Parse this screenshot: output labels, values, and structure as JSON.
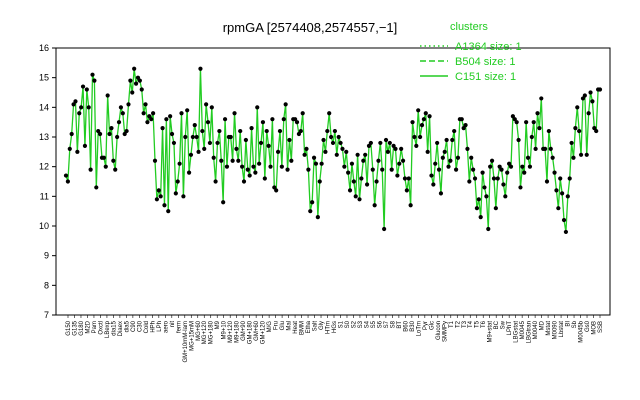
{
  "chart_data": {
    "type": "line",
    "title": "rpmGA [2574408,2574557,−1]",
    "xlabel": "",
    "ylabel": "",
    "ylim": [
      7,
      16
    ],
    "yticks": [
      7,
      8,
      9,
      10,
      11,
      12,
      13,
      14,
      15,
      16
    ],
    "grid": false,
    "legend_title": "clusters",
    "legend_position": "top-right",
    "line_color": "#22cc22",
    "point_color": "#000000",
    "legend": [
      {
        "label": "A1364 size: 1",
        "style": "dotted"
      },
      {
        "label": "B504 size: 1",
        "style": "dashed"
      },
      {
        "label": "C151 size: 1",
        "style": "solid"
      }
    ],
    "x_tick_labels": [
      "G150",
      "G135",
      "G180",
      "M2D",
      "Pam",
      "Oxctl",
      "LBexp",
      "dia15",
      "Diaex",
      "dia5",
      "C90",
      "C30",
      "Cold",
      "HPh",
      "LPh",
      "aero",
      "nit",
      "ferm",
      "GM+10mM-lam",
      "MG+15mM",
      "MG+60",
      "MG+120",
      "MG+180",
      "M9",
      "M9+10",
      "M9+120",
      "M9+180",
      "GM+90",
      "GM+180",
      "GM+60",
      "GM+120",
      "M/G",
      "Fru",
      "Glu",
      "Mal",
      "Heat",
      "BMM",
      "Etha",
      "Salt",
      "Gly",
      "HTm",
      "HGs",
      "S1",
      "S0",
      "S2",
      "S3",
      "S4",
      "S5",
      "S6",
      "S7",
      "S8",
      "BT",
      "B60",
      "B30",
      "LoTm",
      "Pyr",
      "Glc",
      "Glucon",
      "SMMPy",
      "T1",
      "T2",
      "T3",
      "T4",
      "T5",
      "T6",
      "M9+stat",
      "BC",
      "Sw",
      "LPhT",
      "LBGstat",
      "M0045",
      "LBGtran",
      "M0040",
      "MD",
      "Mstat",
      "M0090",
      "Lbstat",
      "BI",
      "Sb",
      "M0045b",
      "Gs0",
      "MOB",
      "SSB"
    ],
    "series": [
      {
        "values": [
          11.7,
          11.5,
          12.6,
          13.1,
          14.1,
          14.2,
          12.5,
          13.8,
          14.0,
          14.7,
          12.7,
          14.6,
          14.0,
          11.9,
          15.1,
          14.9,
          11.3,
          13.2,
          13.1,
          12.3,
          12.3,
          12.0,
          14.4,
          13.1,
          13.3,
          12.2,
          11.9,
          13.0,
          13.5,
          14.0,
          13.8,
          13.1,
          13.2,
          14.1,
          14.9,
          14.5,
          15.3,
          14.8,
          15.0,
          14.9,
          14.6,
          13.8,
          14.1,
          13.5,
          13.7,
          13.6,
          13.8,
          12.2,
          10.9,
          11.2,
          11.0,
          13.3,
          10.7,
          13.6,
          10.5,
          13.7,
          13.1,
          12.8,
          11.1,
          11.5,
          12.1,
          13.8,
          11.0,
          13.0,
          13.9,
          11.8,
          12.4,
          13.0,
          13.4,
          13.0,
          12.5,
          15.3,
          13.2,
          12.6,
          14.1,
          13.5,
          12.8,
          14.0,
          12.3,
          11.5,
          12.8,
          13.2,
          12.2,
          10.8,
          13.6,
          12.0,
          13.0,
          13.0,
          12.2,
          13.8,
          12.6,
          12.2,
          13.2,
          12.0,
          11.5,
          12.9,
          11.9,
          11.7,
          13.3,
          12.0,
          11.8,
          14.0,
          12.1,
          12.8,
          13.5,
          11.6,
          13.2,
          12.7,
          12.0,
          13.6,
          11.3,
          11.2,
          12.5,
          13.2,
          12.0,
          13.6,
          14.1,
          11.9,
          12.9,
          12.2,
          13.6,
          13.6,
          13.5,
          13.1,
          13.2,
          13.8,
          12.4,
          12.6,
          11.9,
          10.5,
          10.8,
          12.3,
          12.1,
          10.3,
          11.5,
          12.1,
          12.9,
          12.5,
          13.2,
          13.8,
          13.0,
          12.8,
          13.2,
          12.4,
          13.0,
          12.8,
          12.6,
          12.0,
          12.5,
          11.8,
          11.2,
          12.1,
          11.5,
          11.0,
          12.4,
          10.9,
          11.6,
          12.2,
          12.4,
          11.4,
          12.7,
          12.8,
          11.9,
          10.7,
          11.5,
          12.2,
          12.8,
          11.9,
          9.9,
          12.9,
          12.5,
          12.8,
          11.9,
          12.7,
          12.6,
          11.7,
          12.1,
          12.6,
          12.2,
          11.6,
          11.2,
          11.6,
          10.7,
          13.5,
          13.0,
          12.7,
          13.9,
          13.0,
          13.4,
          13.6,
          13.8,
          12.5,
          13.7,
          11.7,
          11.4,
          12.1,
          12.8,
          11.9,
          11.1,
          12.3,
          12.5,
          12.9,
          12.0,
          12.2,
          12.9,
          13.2,
          11.9,
          12.3,
          13.6,
          13.6,
          13.3,
          13.4,
          12.6,
          11.5,
          12.3,
          11.9,
          11.6,
          10.6,
          10.9,
          10.3,
          11.8,
          11.3,
          11.0,
          9.9,
          12.0,
          12.2,
          11.6,
          10.6,
          11.6,
          12.0,
          11.9,
          11.4,
          11.0,
          11.8,
          12.1,
          12.0,
          13.7,
          13.6,
          13.5,
          12.9,
          11.3,
          12.0,
          11.8,
          13.5,
          12.3,
          12.0,
          13.0,
          13.5,
          12.6,
          13.8,
          13.3,
          14.3,
          12.6,
          12.6,
          11.5,
          13.2,
          12.6,
          12.3,
          11.8,
          11.2,
          10.6,
          11.6,
          11.1,
          10.2,
          9.8,
          11.0,
          11.6,
          12.8,
          12.3,
          13.3,
          14.0,
          13.2,
          12.4,
          14.3,
          14.4,
          12.4,
          13.8,
          14.5,
          14.2,
          13.3,
          13.2,
          14.6,
          14.6
        ]
      }
    ]
  }
}
